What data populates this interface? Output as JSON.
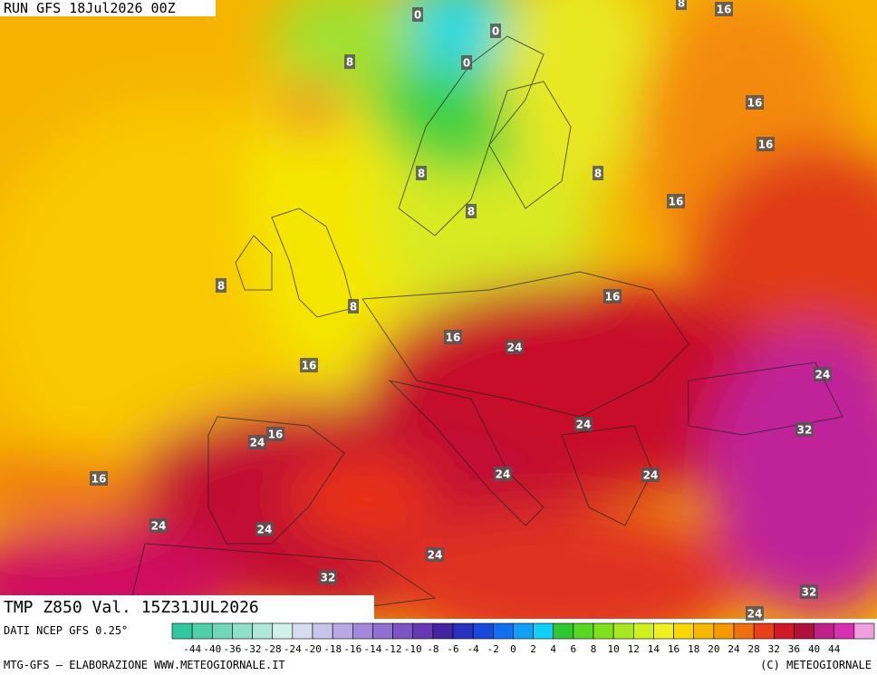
{
  "header": {
    "run": "RUN GFS 18Jul2026 00Z",
    "variable": "TMP Z850 Val. 15Z31JUL2026"
  },
  "footer": {
    "source": "DATI NCEP GFS 0.25°",
    "credits": "MTG-GFS — ELABORAZIONE WWW.METEOGIORNALE.IT",
    "copyright": "(C) METEOGIORNALE"
  },
  "contour_labels": [
    "0",
    "0",
    "0",
    "8",
    "8",
    "16",
    "16",
    "16",
    "8",
    "8",
    "16",
    "8",
    "8",
    "8",
    "16",
    "16",
    "24",
    "16",
    "24",
    "24",
    "32",
    "16",
    "24",
    "24",
    "24",
    "16",
    "24",
    "24",
    "24",
    "32",
    "32",
    "24"
  ],
  "legend": {
    "labels": [
      -44,
      -40,
      -36,
      -32,
      -28,
      -24,
      -20,
      -18,
      -16,
      -14,
      -12,
      -10,
      -8,
      -6,
      -4,
      -2,
      0,
      2,
      4,
      6,
      8,
      10,
      12,
      14,
      16,
      18,
      20,
      24,
      28,
      32,
      36,
      40,
      44
    ],
    "colors": [
      "#30c8a0",
      "#50d0a8",
      "#70d8b8",
      "#90e0c8",
      "#b0e8d8",
      "#d0f0e8",
      "#d8dcf0",
      "#c8c4ec",
      "#b8a8e4",
      "#a488dc",
      "#9070d0",
      "#7c54c4",
      "#6838b4",
      "#4424a4",
      "#2830c0",
      "#1848dc",
      "#1070f0",
      "#10a0f8",
      "#10d0f8",
      "#30c830",
      "#58d820",
      "#80e020",
      "#a8e820",
      "#d0f020",
      "#f0f020",
      "#f8d800",
      "#f8b800",
      "#f89800",
      "#f07010",
      "#e84018",
      "#d01828",
      "#b0103a",
      "#c0208a",
      "#d830b0",
      "#f0a0e0"
    ]
  }
}
